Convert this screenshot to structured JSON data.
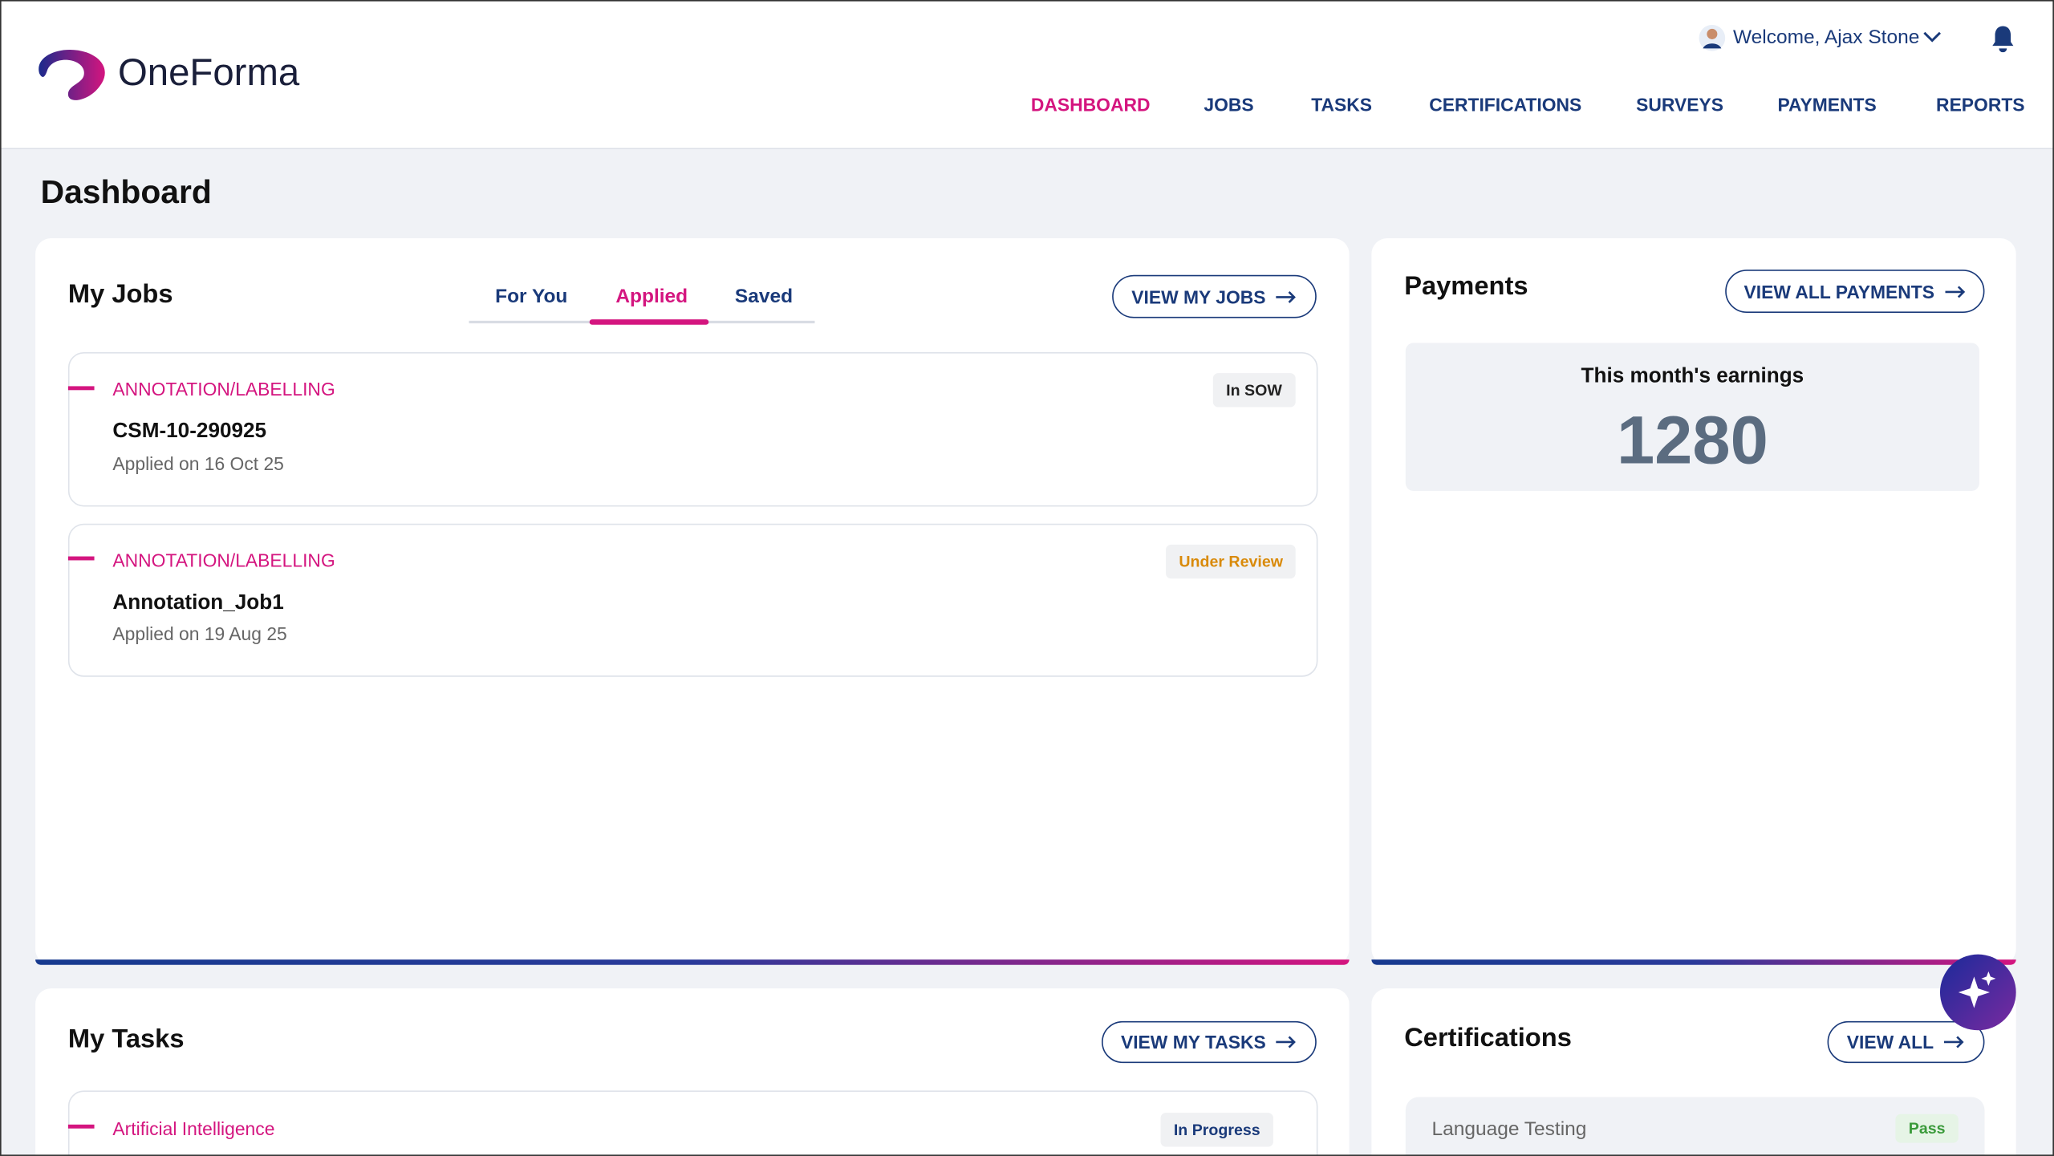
{
  "header": {
    "logo": "OneForma",
    "welcome": "Welcome, Ajax Stone",
    "nav": [
      "DASHBOARD",
      "JOBS",
      "TASKS",
      "CERTIFICATIONS",
      "SURVEYS",
      "PAYMENTS",
      "REPORTS"
    ]
  },
  "page_title": "Dashboard",
  "my_jobs": {
    "title": "My Jobs",
    "tabs": [
      "For You",
      "Applied",
      "Saved"
    ],
    "button": "VIEW MY JOBS",
    "jobs": [
      {
        "category": "ANNOTATION/LABELLING",
        "name": "CSM-10-290925",
        "applied": "Applied on 16 Oct 25",
        "status": "In SOW"
      },
      {
        "category": "ANNOTATION/LABELLING",
        "name": "Annotation_Job1",
        "applied": "Applied on 19 Aug 25",
        "status": "Under Review"
      }
    ]
  },
  "payments": {
    "title": "Payments",
    "button": "VIEW ALL PAYMENTS",
    "earnings_label": "This month's earnings",
    "earnings_value": 1280
  },
  "my_tasks": {
    "title": "My Tasks",
    "button": "VIEW MY TASKS",
    "tasks": [
      {
        "category": "Artificial Intelligence",
        "status": "In Progress"
      }
    ]
  },
  "certifications": {
    "title": "Certifications",
    "button": "VIEW ALL",
    "items": [
      {
        "name": "Language Testing",
        "status": "Pass"
      }
    ]
  }
}
